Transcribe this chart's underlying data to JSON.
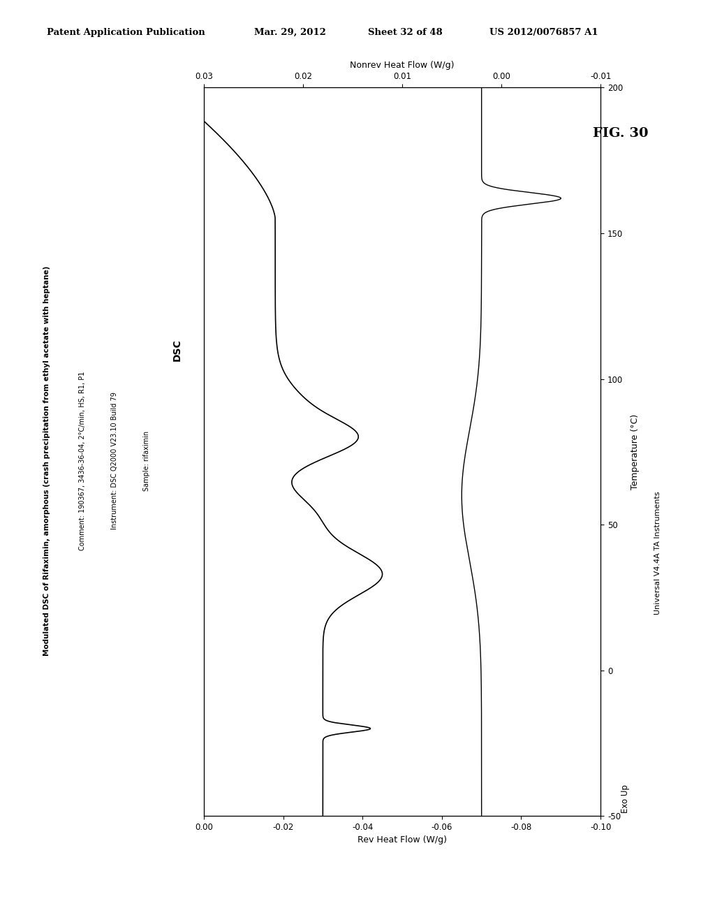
{
  "title_main": "Modulated DSC of Rifaximin, amorphous (crash precipitation from ethyl acetate with heptane)",
  "comment_line": "Comment: 190367, 3436-36-04, 2°C/min, HS, R1, P1",
  "instrument_line": "Instrument: DSC Q2000 V23.10 Build 79",
  "sample_line": "Sample: rifaximin",
  "dsc_label": "DSC",
  "fig_label": "FIG. 30",
  "patent_header": "Patent Application Publication",
  "patent_date": "Mar. 29, 2012",
  "patent_sheet": "Sheet 32 of 48",
  "patent_num": "US 2012/0076857 A1",
  "ta_instruments": "Universal V4.4A TA Instruments",
  "exo_up": "Exo Up",
  "temp_label": "Temperature (°C)",
  "rev_label": "Rev Heat Flow (W/g)",
  "nonrev_label": "Nonrev Heat Flow (W/g)",
  "temp_min": -50,
  "temp_max": 200,
  "rev_min": -0.1,
  "rev_max": 0.0,
  "nonrev_min": -0.01,
  "nonrev_max": 0.03,
  "temp_ticks": [
    -50,
    0,
    50,
    100,
    150,
    200
  ],
  "rev_ticks": [
    0.0,
    -0.02,
    -0.04,
    -0.06,
    -0.08,
    -0.1
  ],
  "nonrev_ticks": [
    0.03,
    0.02,
    0.01,
    0.0,
    -0.01
  ],
  "background_color": "#ffffff",
  "line_color": "#000000"
}
